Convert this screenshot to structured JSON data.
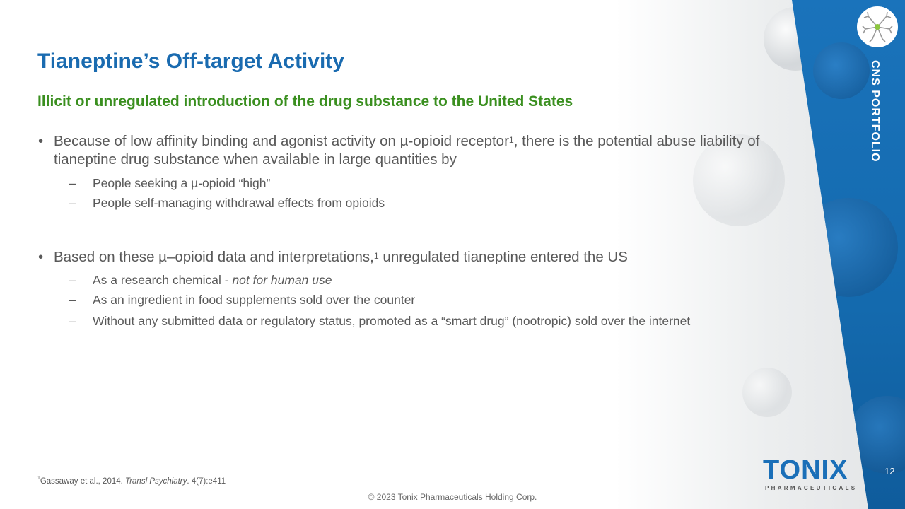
{
  "slide": {
    "title": "Tianeptine’s Off-target Activity",
    "subtitle": "Illicit or unregulated introduction of the drug substance to the United States",
    "bullets": [
      {
        "text_a": "Because of low affinity binding and agonist activity on µ-opioid receptor",
        "sup": "1",
        "text_b": ", there is the potential abuse liability of tianeptine drug substance when available in large quantities by",
        "subs": [
          "People seeking a µ-opioid “high”",
          "People self-managing  withdrawal effects from opioids"
        ]
      },
      {
        "text_a": "Based on these µ–opioid data and interpretations,",
        "sup": "1",
        "text_b": " unregulated tianeptine entered the US",
        "subs_first_plain": "As a research chemical - ",
        "subs_first_italic": "not for human use",
        "subs": [
          "As an ingredient in food supplements  sold over the counter",
          "Without any submitted data or regulatory status, promoted  as a “smart drug” (nootropic) sold over the internet"
        ]
      }
    ],
    "footnote": {
      "sup": "1",
      "plain": "Gassaway et al., 2014. ",
      "italic": "Transl Psychiatry",
      "rest": ". 4(7):e411"
    },
    "copyright": "© 2023 Tonix Pharmaceuticals Holding Corp.",
    "page_number": "12"
  },
  "branding": {
    "section_label": "CNS PORTFOLIO",
    "logo_text": "TONIX",
    "logo_subtext": "PHARMACEUTICALS",
    "section_icon": "neuron-icon",
    "colors": {
      "title": "#1a6bb0",
      "subtitle": "#3a8f1f",
      "panel": "#1a73bb",
      "neuron_dot": "#8cc63f"
    }
  }
}
